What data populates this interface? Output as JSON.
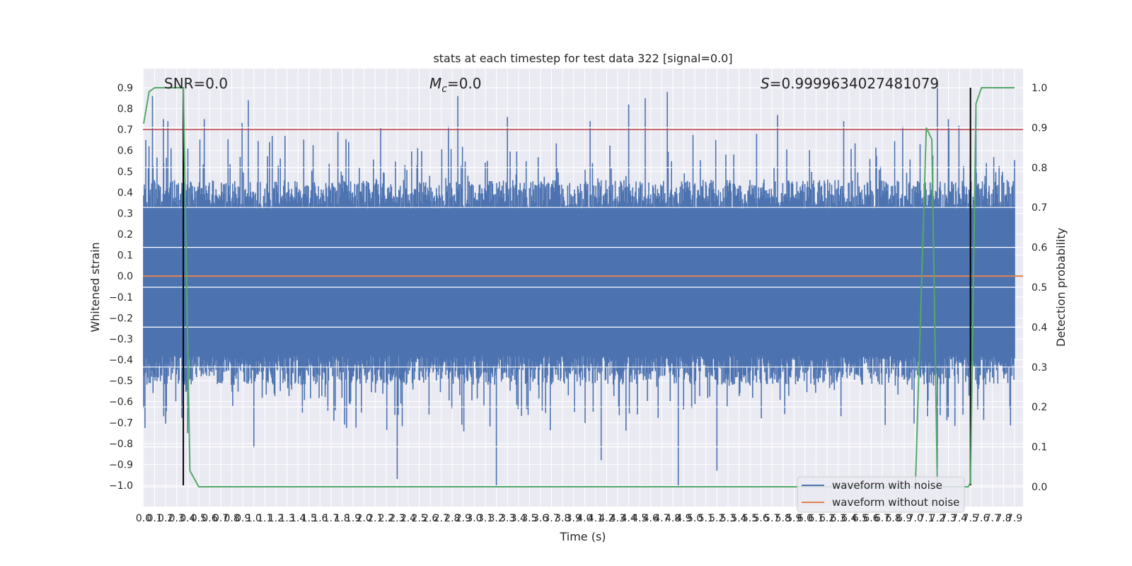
{
  "chart_data": {
    "type": "line",
    "title": "stats at each timestep for test data 322 [signal=0.0]",
    "xlabel": "Time (s)",
    "ylabel_left": "Whitened strain",
    "ylabel_right": "Detection probability",
    "xlim": [
      0.0,
      7.9
    ],
    "ylim_left": [
      -1.0,
      0.9
    ],
    "ylim_right": [
      0.0,
      1.0
    ],
    "x_ticks": [
      "0.0",
      "0.1",
      "0.2",
      "0.3",
      "0.4",
      "0.5",
      "0.6",
      "0.7",
      "0.8",
      "0.9",
      "1.0",
      "1.1",
      "1.2",
      "1.3",
      "1.4",
      "1.5",
      "1.6",
      "1.7",
      "1.8",
      "1.9",
      "2.0",
      "2.1",
      "2.2",
      "2.3",
      "2.4",
      "2.5",
      "2.6",
      "2.7",
      "2.8",
      "2.9",
      "3.0",
      "3.1",
      "3.2",
      "3.3",
      "3.4",
      "3.5",
      "3.6",
      "3.7",
      "3.8",
      "3.9",
      "4.0",
      "4.1",
      "4.2",
      "4.3",
      "4.4",
      "4.5",
      "4.6",
      "4.7",
      "4.8",
      "4.9",
      "5.0",
      "5.1",
      "5.2",
      "5.3",
      "5.4",
      "5.5",
      "5.6",
      "5.7",
      "5.8",
      "5.9",
      "6.0",
      "6.1",
      "6.2",
      "6.3",
      "6.4",
      "6.5",
      "6.6",
      "6.7",
      "6.8",
      "6.9",
      "7.0",
      "7.1",
      "7.2",
      "7.3",
      "7.4",
      "7.5",
      "7.6",
      "7.7",
      "7.8",
      "7.9"
    ],
    "y_ticks_left": [
      "0.9",
      "0.8",
      "0.7",
      "0.6",
      "0.5",
      "0.4",
      "0.3",
      "0.2",
      "0.1",
      "0.0",
      "−0.1",
      "−0.2",
      "−0.3",
      "−0.4",
      "−0.5",
      "−0.6",
      "−0.7",
      "−0.8",
      "−0.9",
      "−1.0"
    ],
    "y_ticks_right": [
      "1.0",
      "0.9",
      "0.8",
      "0.7",
      "0.6",
      "0.5",
      "0.4",
      "0.3",
      "0.2",
      "0.1",
      "0.0"
    ],
    "annotations": {
      "snr": "SNR=0.0",
      "mc": "=0.0",
      "mc_symbol": "M",
      "mc_subscript": "c",
      "s": "=0.9999634027481079",
      "s_symbol": "S"
    },
    "threshold": {
      "value": 0.7,
      "color": "#c44e52"
    },
    "vertical_markers": [
      0.36,
      7.5
    ],
    "series": [
      {
        "name": "waveform with noise",
        "color": "#4c72b0",
        "envelope_typical": 0.32,
        "peaks": [
          [
            0.02,
            0.65
          ],
          [
            0.08,
            0.86
          ],
          [
            0.18,
            0.75
          ],
          [
            0.22,
            0.74
          ],
          [
            0.55,
            0.75
          ],
          [
            0.95,
            0.84
          ],
          [
            2.15,
            0.71
          ],
          [
            2.85,
            0.86
          ],
          [
            3.3,
            0.76
          ],
          [
            4.05,
            0.74
          ],
          [
            4.4,
            0.82
          ],
          [
            4.55,
            0.85
          ],
          [
            4.75,
            0.88
          ],
          [
            5.75,
            0.77
          ],
          [
            6.35,
            0.74
          ],
          [
            7.2,
            0.92
          ],
          [
            7.3,
            0.75
          ],
          [
            7.55,
            0.79
          ]
        ],
        "troughs": [
          [
            0.0,
            -0.63
          ],
          [
            0.4,
            -0.75
          ],
          [
            1.0,
            -0.82
          ],
          [
            2.3,
            -0.97
          ],
          [
            3.2,
            -1.0
          ],
          [
            4.15,
            -0.88
          ],
          [
            4.85,
            -1.0
          ],
          [
            5.2,
            -0.93
          ],
          [
            7.2,
            -0.92
          ],
          [
            7.5,
            -0.72
          ]
        ]
      },
      {
        "name": "waveform without noise",
        "color": "#dd8452",
        "values_constant": 0.0
      },
      {
        "name": "detection probability",
        "color": "#55a868",
        "axis": "right",
        "x": [
          0.0,
          0.05,
          0.1,
          0.3,
          0.36,
          0.42,
          0.5,
          7.0,
          7.1,
          7.15,
          7.2,
          7.28,
          7.3,
          7.35,
          7.38,
          7.42,
          7.45,
          7.48,
          7.5,
          7.55,
          7.6,
          7.9
        ],
        "y": [
          0.91,
          0.99,
          1.0,
          1.0,
          1.0,
          0.04,
          0.0,
          0.0,
          0.9,
          0.87,
          0.0,
          0.0,
          0.0,
          0.0,
          0.0,
          0.0,
          0.0,
          0.0,
          0.01,
          0.96,
          1.0,
          1.0
        ]
      }
    ],
    "legend": {
      "position": "lower-right",
      "entries": [
        "waveform with noise",
        "waveform without noise"
      ]
    },
    "grid": true
  }
}
